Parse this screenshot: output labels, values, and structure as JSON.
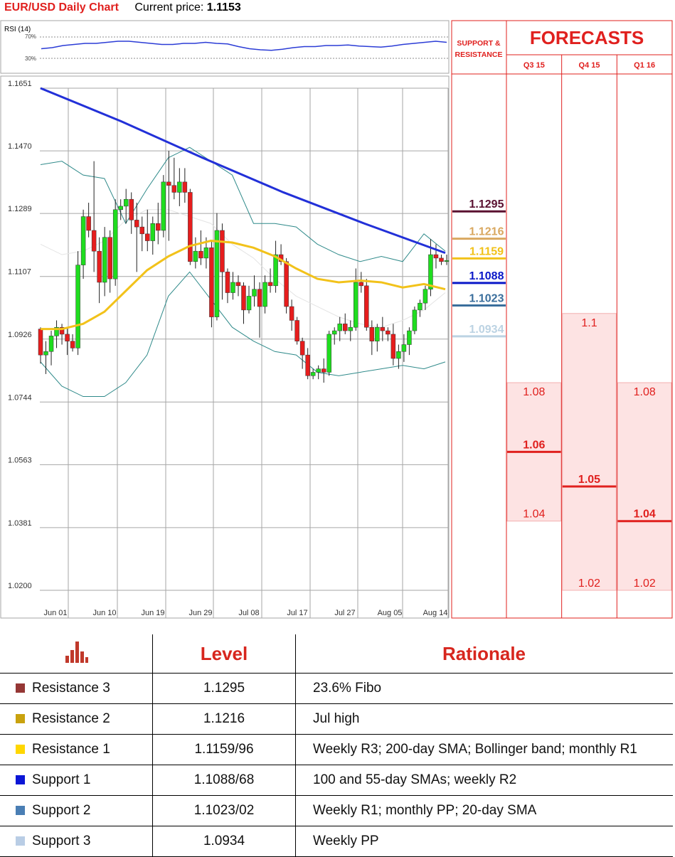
{
  "header": {
    "title": "EUR/USD Daily Chart",
    "price_label": "Current price:",
    "price_value": "1.1153"
  },
  "chart_data": [
    {
      "type": "candlestick",
      "title": "EUR/USD Daily Chart",
      "yticks": [
        "1.1651",
        "1.1470",
        "1.1289",
        "1.1107",
        "1.0926",
        "1.0744",
        "1.0563",
        "1.0381",
        "1.0200"
      ],
      "ylim": [
        1.02,
        1.1651
      ],
      "xticks": [
        "Jun 01",
        "Jun 10",
        "Jun 19",
        "Jun 29",
        "Jul 08",
        "Jul 17",
        "Jul 27",
        "Aug 05",
        "Aug 14"
      ],
      "grid": true,
      "candles": [
        {
          "o": 1.0955,
          "h": 1.096,
          "l": 1.0855,
          "c": 1.088
        },
        {
          "o": 1.088,
          "h": 1.092,
          "l": 1.0825,
          "c": 1.089
        },
        {
          "o": 1.089,
          "h": 1.095,
          "l": 1.085,
          "c": 1.0935
        },
        {
          "o": 1.0935,
          "h": 1.098,
          "l": 1.09,
          "c": 1.096
        },
        {
          "o": 1.096,
          "h": 1.097,
          "l": 1.091,
          "c": 1.094
        },
        {
          "o": 1.094,
          "h": 1.096,
          "l": 1.088,
          "c": 1.092
        },
        {
          "o": 1.092,
          "h": 1.094,
          "l": 1.089,
          "c": 1.09
        },
        {
          "o": 1.09,
          "h": 1.118,
          "l": 1.088,
          "c": 1.114
        },
        {
          "o": 1.114,
          "h": 1.13,
          "l": 1.11,
          "c": 1.128
        },
        {
          "o": 1.128,
          "h": 1.132,
          "l": 1.122,
          "c": 1.124
        },
        {
          "o": 1.124,
          "h": 1.144,
          "l": 1.112,
          "c": 1.118
        },
        {
          "o": 1.118,
          "h": 1.122,
          "l": 1.103,
          "c": 1.109
        },
        {
          "o": 1.109,
          "h": 1.125,
          "l": 1.105,
          "c": 1.122
        },
        {
          "o": 1.122,
          "h": 1.124,
          "l": 1.106,
          "c": 1.11
        },
        {
          "o": 1.11,
          "h": 1.133,
          "l": 1.108,
          "c": 1.13
        },
        {
          "o": 1.13,
          "h": 1.133,
          "l": 1.127,
          "c": 1.131
        },
        {
          "o": 1.131,
          "h": 1.136,
          "l": 1.126,
          "c": 1.133
        },
        {
          "o": 1.133,
          "h": 1.135,
          "l": 1.123,
          "c": 1.127
        },
        {
          "o": 1.127,
          "h": 1.132,
          "l": 1.112,
          "c": 1.125
        },
        {
          "o": 1.125,
          "h": 1.128,
          "l": 1.118,
          "c": 1.123
        },
        {
          "o": 1.123,
          "h": 1.13,
          "l": 1.118,
          "c": 1.121
        },
        {
          "o": 1.121,
          "h": 1.128,
          "l": 1.117,
          "c": 1.126
        },
        {
          "o": 1.126,
          "h": 1.132,
          "l": 1.12,
          "c": 1.124
        },
        {
          "o": 1.124,
          "h": 1.14,
          "l": 1.122,
          "c": 1.138
        },
        {
          "o": 1.138,
          "h": 1.147,
          "l": 1.121,
          "c": 1.137
        },
        {
          "o": 1.137,
          "h": 1.145,
          "l": 1.133,
          "c": 1.135
        },
        {
          "o": 1.135,
          "h": 1.142,
          "l": 1.131,
          "c": 1.138
        },
        {
          "o": 1.138,
          "h": 1.142,
          "l": 1.132,
          "c": 1.135
        },
        {
          "o": 1.135,
          "h": 1.136,
          "l": 1.114,
          "c": 1.115
        },
        {
          "o": 1.115,
          "h": 1.122,
          "l": 1.113,
          "c": 1.118
        },
        {
          "o": 1.118,
          "h": 1.124,
          "l": 1.114,
          "c": 1.116
        },
        {
          "o": 1.116,
          "h": 1.122,
          "l": 1.113,
          "c": 1.119
        },
        {
          "o": 1.119,
          "h": 1.121,
          "l": 1.096,
          "c": 1.099
        },
        {
          "o": 1.099,
          "h": 1.129,
          "l": 1.098,
          "c": 1.124
        },
        {
          "o": 1.124,
          "h": 1.126,
          "l": 1.104,
          "c": 1.112
        },
        {
          "o": 1.112,
          "h": 1.113,
          "l": 1.103,
          "c": 1.106
        },
        {
          "o": 1.106,
          "h": 1.112,
          "l": 1.104,
          "c": 1.109
        },
        {
          "o": 1.109,
          "h": 1.111,
          "l": 1.105,
          "c": 1.108
        },
        {
          "o": 1.108,
          "h": 1.109,
          "l": 1.097,
          "c": 1.101
        },
        {
          "o": 1.101,
          "h": 1.108,
          "l": 1.1,
          "c": 1.105
        },
        {
          "o": 1.105,
          "h": 1.111,
          "l": 1.102,
          "c": 1.107
        },
        {
          "o": 1.107,
          "h": 1.109,
          "l": 1.093,
          "c": 1.102
        },
        {
          "o": 1.102,
          "h": 1.111,
          "l": 1.1,
          "c": 1.109
        },
        {
          "o": 1.109,
          "h": 1.113,
          "l": 1.106,
          "c": 1.108
        },
        {
          "o": 1.108,
          "h": 1.121,
          "l": 1.106,
          "c": 1.117
        },
        {
          "o": 1.117,
          "h": 1.12,
          "l": 1.114,
          "c": 1.115
        },
        {
          "o": 1.115,
          "h": 1.116,
          "l": 1.1,
          "c": 1.102
        },
        {
          "o": 1.102,
          "h": 1.104,
          "l": 1.095,
          "c": 1.098
        },
        {
          "o": 1.098,
          "h": 1.099,
          "l": 1.091,
          "c": 1.092
        },
        {
          "o": 1.092,
          "h": 1.093,
          "l": 1.084,
          "c": 1.088
        },
        {
          "o": 1.088,
          "h": 1.09,
          "l": 1.081,
          "c": 1.082
        },
        {
          "o": 1.082,
          "h": 1.084,
          "l": 1.081,
          "c": 1.083
        },
        {
          "o": 1.083,
          "h": 1.085,
          "l": 1.081,
          "c": 1.084
        },
        {
          "o": 1.084,
          "h": 1.087,
          "l": 1.08,
          "c": 1.083
        },
        {
          "o": 1.083,
          "h": 1.095,
          "l": 1.082,
          "c": 1.094
        },
        {
          "o": 1.094,
          "h": 1.096,
          "l": 1.091,
          "c": 1.095
        },
        {
          "o": 1.095,
          "h": 1.099,
          "l": 1.092,
          "c": 1.097
        },
        {
          "o": 1.097,
          "h": 1.1,
          "l": 1.094,
          "c": 1.095
        },
        {
          "o": 1.095,
          "h": 1.098,
          "l": 1.092,
          "c": 1.096
        },
        {
          "o": 1.096,
          "h": 1.113,
          "l": 1.095,
          "c": 1.109
        },
        {
          "o": 1.109,
          "h": 1.112,
          "l": 1.106,
          "c": 1.108
        },
        {
          "o": 1.108,
          "h": 1.11,
          "l": 1.095,
          "c": 1.096
        },
        {
          "o": 1.096,
          "h": 1.098,
          "l": 1.088,
          "c": 1.092
        },
        {
          "o": 1.092,
          "h": 1.097,
          "l": 1.089,
          "c": 1.096
        },
        {
          "o": 1.096,
          "h": 1.099,
          "l": 1.092,
          "c": 1.095
        },
        {
          "o": 1.095,
          "h": 1.096,
          "l": 1.092,
          "c": 1.094
        },
        {
          "o": 1.094,
          "h": 1.097,
          "l": 1.085,
          "c": 1.087
        },
        {
          "o": 1.087,
          "h": 1.091,
          "l": 1.084,
          "c": 1.089
        },
        {
          "o": 1.089,
          "h": 1.094,
          "l": 1.086,
          "c": 1.091
        },
        {
          "o": 1.091,
          "h": 1.096,
          "l": 1.088,
          "c": 1.095
        },
        {
          "o": 1.095,
          "h": 1.102,
          "l": 1.094,
          "c": 1.101
        },
        {
          "o": 1.101,
          "h": 1.104,
          "l": 1.099,
          "c": 1.103
        },
        {
          "o": 1.103,
          "h": 1.108,
          "l": 1.101,
          "c": 1.107
        },
        {
          "o": 1.107,
          "h": 1.1215,
          "l": 1.105,
          "c": 1.117
        },
        {
          "o": 1.117,
          "h": 1.12,
          "l": 1.113,
          "c": 1.116
        },
        {
          "o": 1.116,
          "h": 1.117,
          "l": 1.114,
          "c": 1.115
        },
        {
          "o": 1.115,
          "h": 1.117,
          "l": 1.114,
          "c": 1.1153
        }
      ],
      "sma_200": [
        1.1651,
        1.1555,
        1.145,
        1.135,
        1.126,
        1.1175
      ],
      "sma_fast": [
        1.0955,
        1.0955,
        1.097,
        1.1005,
        1.1065,
        1.1125,
        1.1165,
        1.1195,
        1.121,
        1.1205,
        1.119,
        1.1165,
        1.113,
        1.11,
        1.109,
        1.1095,
        1.109,
        1.1075,
        1.1085,
        1.107
      ],
      "bb_upper": [
        1.143,
        1.144,
        1.14,
        1.139,
        1.126,
        1.136,
        1.145,
        1.148,
        1.144,
        1.14,
        1.126,
        1.126,
        1.125,
        1.12,
        1.117,
        1.115,
        1.1165,
        1.115,
        1.123,
        1.118
      ],
      "bb_lower": [
        1.086,
        1.079,
        1.076,
        1.076,
        1.08,
        1.088,
        1.105,
        1.112,
        1.104,
        1.096,
        1.092,
        1.089,
        1.088,
        1.083,
        1.082,
        1.083,
        1.084,
        1.085,
        1.084,
        1.086
      ],
      "bb_mid": [
        1.12,
        1.117,
        1.118,
        1.121,
        1.127,
        1.13,
        1.13,
        1.128,
        1.126,
        1.12,
        1.116,
        1.11,
        1.105,
        1.102,
        1.099,
        1.097,
        1.096,
        1.098,
        1.101,
        1.106
      ]
    },
    {
      "type": "line",
      "title": "RSI (14)",
      "yticks": [
        "70%",
        "30%"
      ],
      "values": [
        48,
        50,
        54,
        56,
        58,
        58,
        60,
        62,
        62,
        60,
        58,
        56,
        56,
        58,
        58,
        60,
        58,
        57,
        52,
        48,
        46,
        45,
        47,
        50,
        52,
        52,
        54,
        54,
        55,
        53,
        52,
        51,
        53,
        56,
        58,
        60,
        62,
        60
      ]
    }
  ],
  "levels_chart": {
    "header": "SUPPORT & RESISTANCE",
    "levels": [
      {
        "label": "1.1295",
        "color": "#5a1030",
        "value": 1.1295
      },
      {
        "label": "1.1216",
        "color": "#d9a860",
        "value": 1.1216
      },
      {
        "label": "1.1159",
        "color": "#f2c21a",
        "value": 1.1159
      },
      {
        "label": "1.1088",
        "color": "#0a18c8",
        "value": 1.1088
      },
      {
        "label": "1.1023",
        "color": "#3a6e9c",
        "value": 1.1023
      },
      {
        "label": "1.0934",
        "color": "#bcd3e3",
        "value": 1.0934
      }
    ]
  },
  "forecasts": {
    "title": "FORECASTS",
    "columns": [
      {
        "label": "Q3 15",
        "high": 1.08,
        "mid": 1.06,
        "low": 1.04,
        "high_label": "1.08",
        "mid_label": "1.06",
        "low_label": "1.04"
      },
      {
        "label": "Q4 15",
        "high": 1.1,
        "mid": 1.05,
        "low": 1.02,
        "high_label": "1.1",
        "mid_label": "1.05",
        "low_label": "1.02"
      },
      {
        "label": "Q1 16",
        "high": 1.08,
        "mid": 1.04,
        "low": 1.02,
        "high_label": "1.08",
        "mid_label": "1.04",
        "low_label": "1.02"
      }
    ]
  },
  "table": {
    "icon": "bar-chart-icon",
    "headers": {
      "level": "Level",
      "rationale": "Rationale"
    },
    "rows": [
      {
        "name": "Resistance 3",
        "color": "#953735",
        "level": "1.1295",
        "rationale": "23.6% Fibo"
      },
      {
        "name": "Resistance 2",
        "color": "#c9a20e",
        "level": "1.1216",
        "rationale": "Jul high"
      },
      {
        "name": "Resistance 1",
        "color": "#ffd700",
        "level": "1.1159/96",
        "rationale": "Weekly R3; 200-day SMA; Bollinger band; monthly R1"
      },
      {
        "name": "Support 1",
        "color": "#0b16d6",
        "level": "1.1088/68",
        "rationale": "100 and 55-day SMAs; weekly R2"
      },
      {
        "name": "Support 2",
        "color": "#4a7eb4",
        "level": "1.1023/02",
        "rationale": "Weekly R1; monthly PP; 20-day SMA"
      },
      {
        "name": "Support 3",
        "color": "#b9cde5",
        "level": "1.0934",
        "rationale": "Weekly PP"
      }
    ]
  }
}
